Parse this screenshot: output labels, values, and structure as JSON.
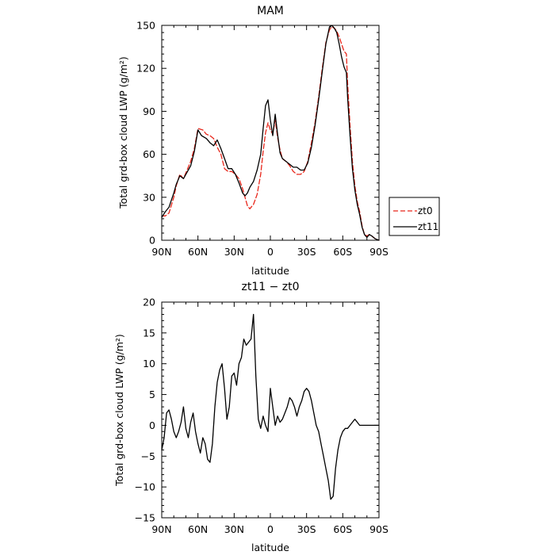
{
  "chart_data": [
    {
      "type": "line",
      "title": "MAM",
      "xlabel": "latitude",
      "ylabel": "Total grd-box cloud LWP (g/m²)",
      "xlim": [
        -90,
        90
      ],
      "ylim": [
        0,
        150
      ],
      "x_ticks": [
        -90,
        -60,
        -30,
        0,
        30,
        60,
        90
      ],
      "x_tick_labels": [
        "90N",
        "60N",
        "30N",
        "0",
        "30S",
        "60S",
        "90S"
      ],
      "y_ticks": [
        0,
        30,
        60,
        90,
        120,
        150
      ],
      "y_tick_labels": [
        "0",
        "30",
        "60",
        "90",
        "120",
        "150"
      ],
      "legend_position": "right",
      "series": [
        {
          "name": "zt0",
          "color": "#e8261a",
          "dash": "dashed",
          "x": [
            -90,
            -87,
            -84,
            -80,
            -78,
            -75,
            -72,
            -70,
            -66,
            -63,
            -60,
            -56,
            -53,
            -50,
            -47,
            -44,
            -41,
            -38,
            -35,
            -32,
            -29,
            -26,
            -23,
            -21,
            -19,
            -17,
            -14,
            -11,
            -8,
            -6,
            -4,
            -2,
            0,
            2,
            4,
            6,
            8,
            10,
            13,
            16,
            19,
            22,
            25,
            28,
            31,
            34,
            37,
            40,
            43,
            46,
            49,
            51,
            53,
            55,
            57,
            59,
            61,
            63,
            64,
            66,
            68,
            70,
            72,
            74,
            76,
            78,
            80,
            82,
            84,
            87,
            90
          ],
          "y": [
            17,
            17,
            19,
            30,
            38,
            46,
            43,
            47,
            55,
            64,
            78,
            77,
            74,
            73,
            71,
            65,
            60,
            50,
            48,
            48,
            46,
            43,
            36,
            30,
            24,
            22,
            25,
            32,
            46,
            62,
            75,
            82,
            77,
            74,
            84,
            72,
            63,
            57,
            55,
            52,
            48,
            46,
            46,
            48,
            55,
            68,
            82,
            100,
            120,
            138,
            147,
            149,
            148,
            146,
            142,
            137,
            132,
            130,
            110,
            80,
            55,
            38,
            27,
            20,
            10,
            4,
            3,
            4,
            3,
            1,
            0
          ]
        },
        {
          "name": "zt11",
          "color": "#000000",
          "dash": "solid",
          "x": [
            -90,
            -87,
            -84,
            -80,
            -78,
            -75,
            -72,
            -70,
            -66,
            -63,
            -60,
            -57,
            -53,
            -50,
            -47,
            -44,
            -41,
            -38,
            -35,
            -32,
            -29,
            -26,
            -23,
            -21,
            -19,
            -17,
            -14,
            -11,
            -8,
            -6,
            -4,
            -2,
            0,
            2,
            4,
            6,
            8,
            10,
            13,
            16,
            19,
            22,
            25,
            28,
            31,
            34,
            37,
            40,
            43,
            46,
            49,
            51,
            53,
            55,
            57,
            59,
            61,
            63,
            64,
            66,
            68,
            70,
            72,
            74,
            76,
            78,
            80,
            82,
            84,
            87,
            90
          ],
          "y": [
            16,
            20,
            23,
            33,
            39,
            45,
            43,
            46,
            52,
            62,
            77,
            73,
            71,
            68,
            66,
            70,
            64,
            57,
            50,
            50,
            46,
            40,
            33,
            31,
            33,
            37,
            41,
            49,
            60,
            78,
            94,
            98,
            84,
            73,
            88,
            74,
            61,
            57,
            55,
            53,
            51,
            51,
            49,
            49,
            54,
            65,
            80,
            98,
            118,
            137,
            149,
            150,
            148,
            145,
            137,
            128,
            121,
            117,
            100,
            73,
            50,
            35,
            25,
            18,
            9,
            4,
            2,
            4,
            3,
            1,
            0
          ]
        }
      ]
    },
    {
      "type": "line",
      "title": "zt11 − zt0",
      "xlabel": "latitude",
      "ylabel": "Total grd-box cloud LWP (g/m²)",
      "xlim": [
        -90,
        90
      ],
      "ylim": [
        -15,
        20
      ],
      "x_ticks": [
        -90,
        -60,
        -30,
        0,
        30,
        60,
        90
      ],
      "x_tick_labels": [
        "90N",
        "60N",
        "30N",
        "0",
        "30S",
        "60S",
        "90S"
      ],
      "y_ticks": [
        -15,
        -10,
        -5,
        0,
        5,
        10,
        15,
        20
      ],
      "y_tick_labels": [
        "−15",
        "−10",
        "−5",
        "0",
        "5",
        "10",
        "15",
        "20"
      ],
      "series": [
        {
          "color": "#000000",
          "dash": "solid",
          "x": [
            -90,
            -88,
            -86,
            -84,
            -82,
            -80,
            -78,
            -76,
            -74,
            -72,
            -70,
            -68,
            -66,
            -64,
            -62,
            -60,
            -58,
            -56,
            -54,
            -52,
            -50,
            -48,
            -46,
            -44,
            -42,
            -40,
            -38,
            -36,
            -34,
            -32,
            -30,
            -28,
            -26,
            -24,
            -22,
            -20,
            -18,
            -16,
            -14,
            -12,
            -10,
            -8,
            -6,
            -4,
            -2,
            0,
            2,
            4,
            6,
            8,
            10,
            12,
            14,
            16,
            18,
            20,
            22,
            24,
            26,
            28,
            30,
            32,
            34,
            36,
            38,
            40,
            42,
            44,
            46,
            48,
            50,
            52,
            54,
            56,
            58,
            60,
            62,
            64,
            66,
            68,
            70,
            72,
            74,
            76,
            78,
            80,
            82,
            84,
            86,
            88,
            90
          ],
          "y": [
            -4,
            -2,
            2,
            2.5,
            1,
            -1,
            -2,
            -1,
            0.5,
            3,
            -0.5,
            -2,
            0.5,
            2,
            -1,
            -3,
            -4.5,
            -2,
            -3,
            -5.5,
            -6,
            -3,
            3,
            7,
            9,
            10,
            6,
            1,
            3,
            8,
            8.5,
            6.5,
            10,
            11,
            14,
            13,
            13.5,
            14,
            18,
            8,
            1,
            -0.5,
            1.5,
            0,
            -1,
            6,
            3,
            0,
            1.5,
            0.5,
            1,
            2,
            3,
            4.5,
            4,
            3,
            1.5,
            3,
            4,
            5.5,
            6,
            5.5,
            4,
            2,
            0,
            -1,
            -3,
            -5,
            -7,
            -9,
            -12,
            -11.5,
            -7,
            -4,
            -2,
            -1,
            -0.5,
            -0.5,
            0,
            0.5,
            1,
            0.5,
            0,
            0,
            0,
            0,
            0,
            0,
            0,
            0,
            0
          ]
        }
      ]
    }
  ]
}
